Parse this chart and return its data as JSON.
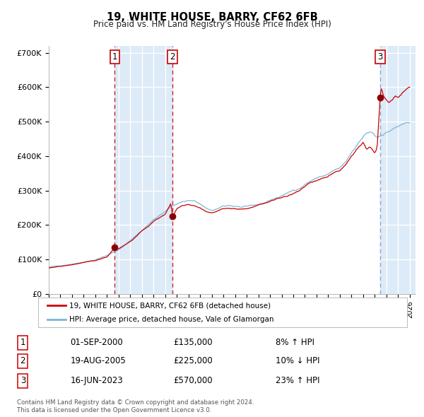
{
  "title": "19, WHITE HOUSE, BARRY, CF62 6FB",
  "subtitle": "Price paid vs. HM Land Registry's House Price Index (HPI)",
  "ylim": [
    0,
    720000
  ],
  "yticks": [
    0,
    100000,
    200000,
    300000,
    400000,
    500000,
    600000,
    700000
  ],
  "ytick_labels": [
    "£0",
    "£100K",
    "£200K",
    "£300K",
    "£400K",
    "£500K",
    "£600K",
    "£700K"
  ],
  "hpi_color": "#7ab3d4",
  "price_color": "#cc0000",
  "sale_marker_color": "#8b0000",
  "sale1_date": 2000.67,
  "sale1_price": 135000,
  "sale2_date": 2005.63,
  "sale2_price": 225000,
  "sale3_date": 2023.46,
  "sale3_price": 570000,
  "legend_property": "19, WHITE HOUSE, BARRY, CF62 6FB (detached house)",
  "legend_hpi": "HPI: Average price, detached house, Vale of Glamorgan",
  "table_rows": [
    [
      "1",
      "01-SEP-2000",
      "£135,000",
      "8% ↑ HPI"
    ],
    [
      "2",
      "19-AUG-2005",
      "£225,000",
      "10% ↓ HPI"
    ],
    [
      "3",
      "16-JUN-2023",
      "£570,000",
      "23% ↑ HPI"
    ]
  ],
  "footer": "Contains HM Land Registry data © Crown copyright and database right 2024.\nThis data is licensed under the Open Government Licence v3.0."
}
